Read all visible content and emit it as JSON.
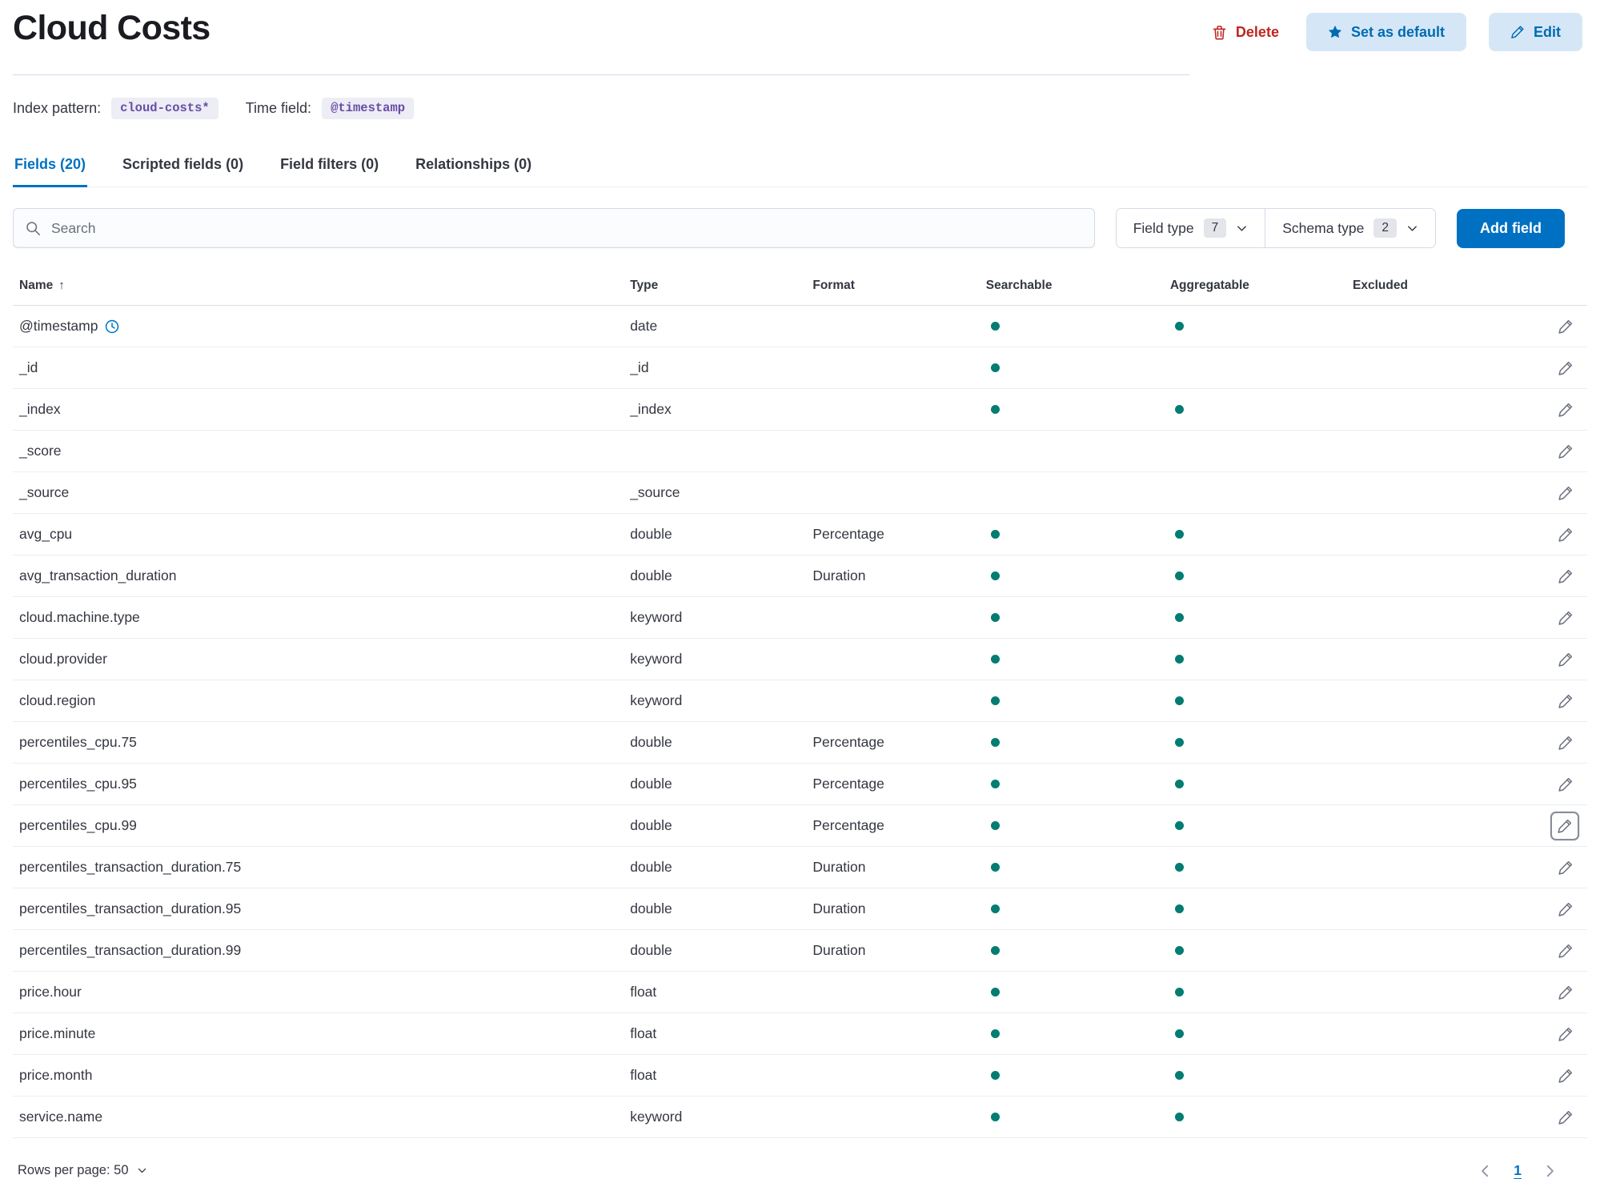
{
  "page": {
    "title": "Cloud Costs"
  },
  "header_actions": {
    "delete_label": "Delete",
    "set_default_label": "Set as default",
    "edit_label": "Edit"
  },
  "meta": {
    "index_pattern_label": "Index pattern:",
    "index_pattern_value": "cloud-costs*",
    "time_field_label": "Time field:",
    "time_field_value": "@timestamp"
  },
  "tabs": [
    {
      "label": "Fields (20)",
      "active": true
    },
    {
      "label": "Scripted fields (0)",
      "active": false
    },
    {
      "label": "Field filters (0)",
      "active": false
    },
    {
      "label": "Relationships (0)",
      "active": false
    }
  ],
  "controls": {
    "search_placeholder": "Search",
    "field_type_label": "Field type",
    "field_type_count": "7",
    "schema_type_label": "Schema type",
    "schema_type_count": "2",
    "add_field_label": "Add field"
  },
  "table": {
    "headers": [
      "Name",
      "Type",
      "Format",
      "Searchable",
      "Aggregatable",
      "Excluded"
    ],
    "sort_arrow": "↑",
    "rows": [
      {
        "name": "@timestamp",
        "time_field": true,
        "type": "date",
        "format": "",
        "searchable": true,
        "aggregatable": true,
        "excluded": "",
        "focused": false
      },
      {
        "name": "_id",
        "time_field": false,
        "type": "_id",
        "format": "",
        "searchable": true,
        "aggregatable": false,
        "excluded": "",
        "focused": false
      },
      {
        "name": "_index",
        "time_field": false,
        "type": "_index",
        "format": "",
        "searchable": true,
        "aggregatable": true,
        "excluded": "",
        "focused": false
      },
      {
        "name": "_score",
        "time_field": false,
        "type": "",
        "format": "",
        "searchable": false,
        "aggregatable": false,
        "excluded": "",
        "focused": false
      },
      {
        "name": "_source",
        "time_field": false,
        "type": "_source",
        "format": "",
        "searchable": false,
        "aggregatable": false,
        "excluded": "",
        "focused": false
      },
      {
        "name": "avg_cpu",
        "time_field": false,
        "type": "double",
        "format": "Percentage",
        "searchable": true,
        "aggregatable": true,
        "excluded": "",
        "focused": false
      },
      {
        "name": "avg_transaction_duration",
        "time_field": false,
        "type": "double",
        "format": "Duration",
        "searchable": true,
        "aggregatable": true,
        "excluded": "",
        "focused": false
      },
      {
        "name": "cloud.machine.type",
        "time_field": false,
        "type": "keyword",
        "format": "",
        "searchable": true,
        "aggregatable": true,
        "excluded": "",
        "focused": false
      },
      {
        "name": "cloud.provider",
        "time_field": false,
        "type": "keyword",
        "format": "",
        "searchable": true,
        "aggregatable": true,
        "excluded": "",
        "focused": false
      },
      {
        "name": "cloud.region",
        "time_field": false,
        "type": "keyword",
        "format": "",
        "searchable": true,
        "aggregatable": true,
        "excluded": "",
        "focused": false
      },
      {
        "name": "percentiles_cpu.75",
        "time_field": false,
        "type": "double",
        "format": "Percentage",
        "searchable": true,
        "aggregatable": true,
        "excluded": "",
        "focused": false
      },
      {
        "name": "percentiles_cpu.95",
        "time_field": false,
        "type": "double",
        "format": "Percentage",
        "searchable": true,
        "aggregatable": true,
        "excluded": "",
        "focused": false
      },
      {
        "name": "percentiles_cpu.99",
        "time_field": false,
        "type": "double",
        "format": "Percentage",
        "searchable": true,
        "aggregatable": true,
        "excluded": "",
        "focused": true
      },
      {
        "name": "percentiles_transaction_duration.75",
        "time_field": false,
        "type": "double",
        "format": "Duration",
        "searchable": true,
        "aggregatable": true,
        "excluded": "",
        "focused": false
      },
      {
        "name": "percentiles_transaction_duration.95",
        "time_field": false,
        "type": "double",
        "format": "Duration",
        "searchable": true,
        "aggregatable": true,
        "excluded": "",
        "focused": false
      },
      {
        "name": "percentiles_transaction_duration.99",
        "time_field": false,
        "type": "double",
        "format": "Duration",
        "searchable": true,
        "aggregatable": true,
        "excluded": "",
        "focused": false
      },
      {
        "name": "price.hour",
        "time_field": false,
        "type": "float",
        "format": "",
        "searchable": true,
        "aggregatable": true,
        "excluded": "",
        "focused": false
      },
      {
        "name": "price.minute",
        "time_field": false,
        "type": "float",
        "format": "",
        "searchable": true,
        "aggregatable": true,
        "excluded": "",
        "focused": false
      },
      {
        "name": "price.month",
        "time_field": false,
        "type": "float",
        "format": "",
        "searchable": true,
        "aggregatable": true,
        "excluded": "",
        "focused": false
      },
      {
        "name": "service.name",
        "time_field": false,
        "type": "keyword",
        "format": "",
        "searchable": true,
        "aggregatable": true,
        "excluded": "",
        "focused": false
      }
    ]
  },
  "footer": {
    "rows_per_page_label": "Rows per page: 50",
    "current_page": "1"
  },
  "colors": {
    "primary": "#0071c2",
    "primary_light_bg": "#d5e7f6",
    "primary_text_on_light": "#006bb4",
    "danger": "#bd271e",
    "dot_teal": "#017d73",
    "badge_purple": "#6a4ca5",
    "badge_bg": "#ecedf5",
    "text": "#343741",
    "subdued": "#69707d"
  }
}
